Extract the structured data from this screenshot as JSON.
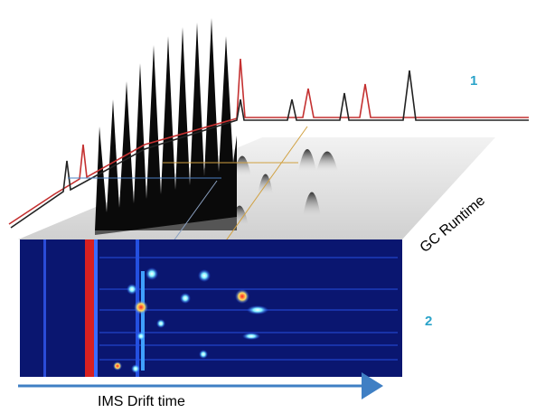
{
  "labels": {
    "panel_1": "1",
    "panel_2": "2",
    "gc_axis": "GC Runtime",
    "ims_axis": "IMS Drift time"
  }
}
